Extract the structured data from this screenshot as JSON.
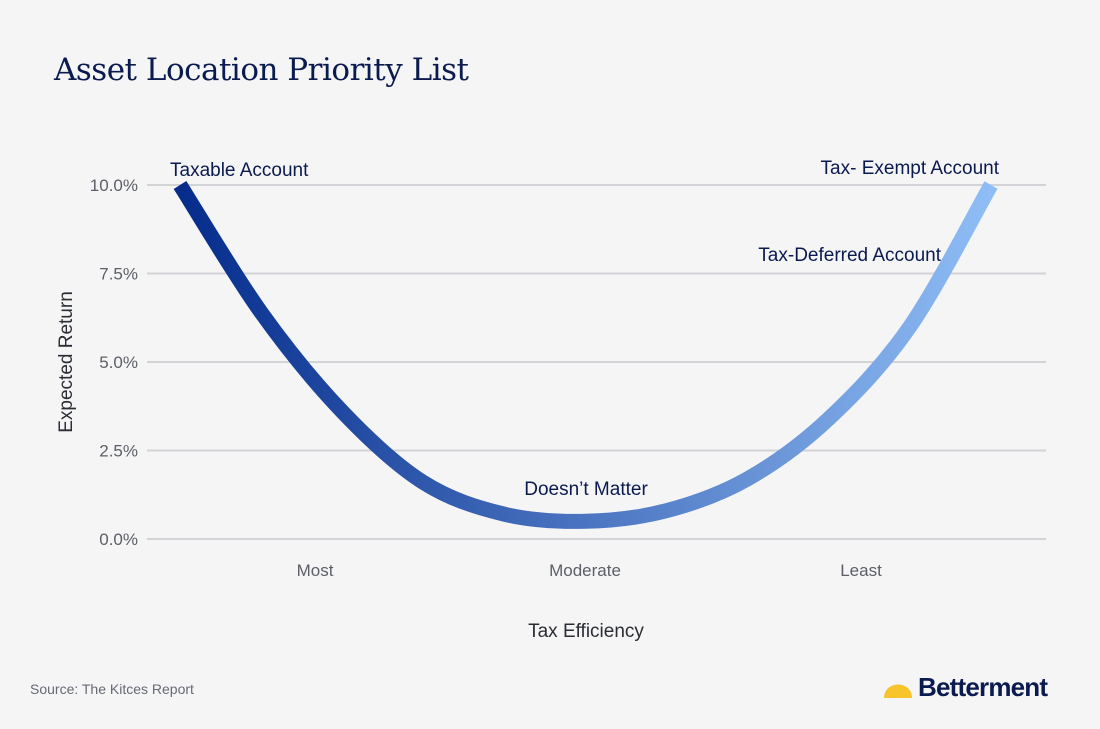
{
  "title": "Asset Location Priority List",
  "source": "Source: The Kitces Report",
  "brand": {
    "name": "Betterment",
    "logo_icon": "sun-logo-icon",
    "logo_color": "#f7c42b"
  },
  "colors": {
    "curve_start": "#062c8c",
    "curve_end": "#8fbdf5",
    "grid": "#d2d3d7",
    "text": "#0b1a4f",
    "tick_text": "#5c5f66"
  },
  "chart_data": {
    "type": "line",
    "title": "Asset Location Priority List",
    "xlabel": "Tax Efficiency",
    "ylabel": "Expected Return",
    "x_categories": [
      "Most",
      "Moderate",
      "Least"
    ],
    "y_ticks": [
      "0.0%",
      "2.5%",
      "5.0%",
      "7.5%",
      "10.0%"
    ],
    "ylim": [
      0,
      10
    ],
    "grid": true,
    "series": [
      {
        "points": [
          [
            0.0,
            10.0
          ],
          [
            0.1,
            6.4
          ],
          [
            0.2,
            3.6
          ],
          [
            0.3,
            1.6
          ],
          [
            0.4,
            0.7
          ],
          [
            0.5,
            0.5
          ],
          [
            0.6,
            0.8
          ],
          [
            0.7,
            1.7
          ],
          [
            0.8,
            3.4
          ],
          [
            0.9,
            6.0
          ],
          [
            1.0,
            10.0
          ]
        ]
      }
    ],
    "annotations": [
      {
        "id": "taxable",
        "text": "Taxable Account",
        "x": 0.0,
        "y": 10.0
      },
      {
        "id": "exempt",
        "text": "Tax- Exempt Account",
        "x": 1.0,
        "y": 10.0
      },
      {
        "id": "deferred",
        "text": "Tax-Deferred Account",
        "x": 0.93,
        "y": 7.5
      },
      {
        "id": "doesnt",
        "text": "Doesn’t Matter",
        "x": 0.5,
        "y": 0.5
      }
    ]
  }
}
